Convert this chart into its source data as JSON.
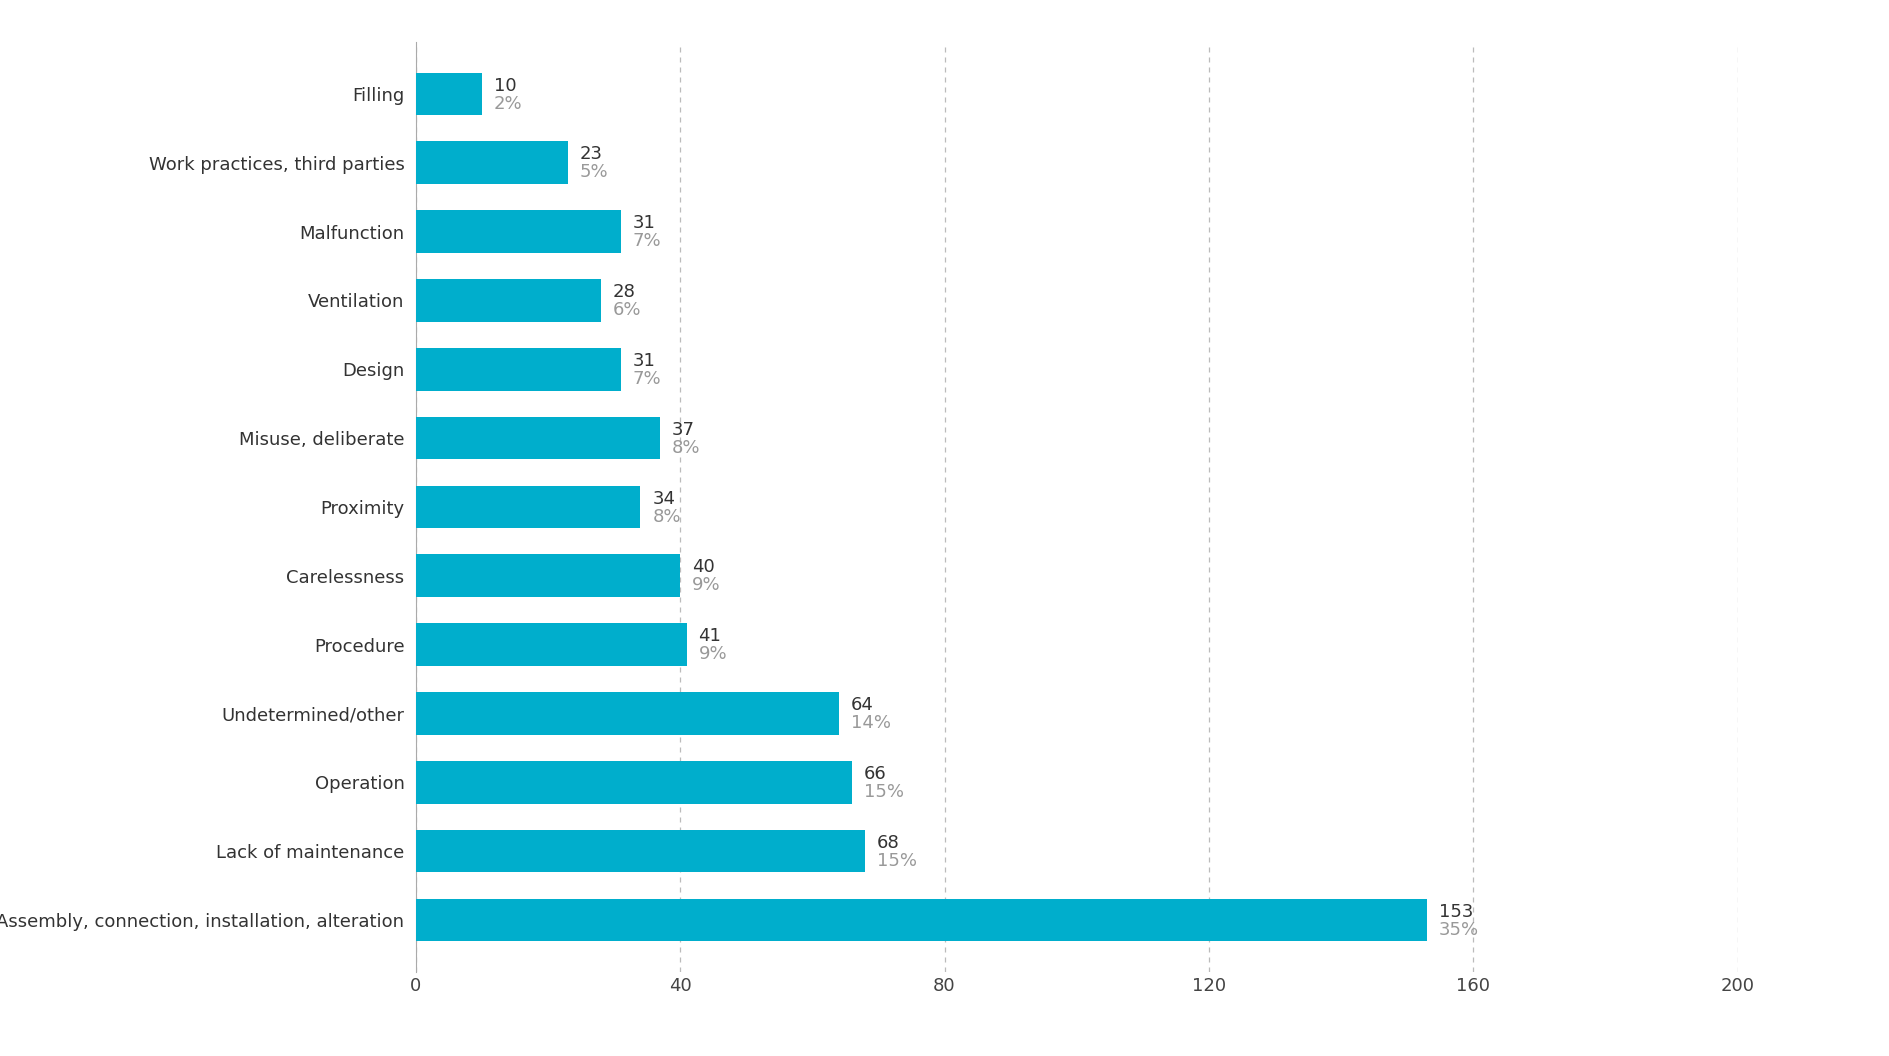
{
  "categories": [
    "Assembly, connection, installation, alteration",
    "Lack of maintenance",
    "Operation",
    "Undetermined/other",
    "Procedure",
    "Carelessness",
    "Proximity",
    "Misuse, deliberate",
    "Design",
    "Ventilation",
    "Malfunction",
    "Work practices, third parties",
    "Filling"
  ],
  "values": [
    153,
    68,
    66,
    64,
    41,
    40,
    34,
    37,
    31,
    28,
    31,
    23,
    10
  ],
  "percentages": [
    "35%",
    "15%",
    "15%",
    "14%",
    "9%",
    "9%",
    "8%",
    "8%",
    "7%",
    "6%",
    "7%",
    "5%",
    "2%"
  ],
  "bar_color": "#00AECC",
  "background_color": "#ffffff",
  "xlim": [
    0,
    200
  ],
  "xticks": [
    0,
    40,
    80,
    120,
    160,
    200
  ],
  "grid_color": "#bbbbbb",
  "label_color_value": "#333333",
  "label_color_pct": "#999999",
  "bar_height": 0.62,
  "figsize": [
    18.89,
    10.56
  ],
  "dpi": 100,
  "ytick_fontsize": 13,
  "xtick_fontsize": 13,
  "label_fontsize_val": 13,
  "label_fontsize_pct": 13
}
